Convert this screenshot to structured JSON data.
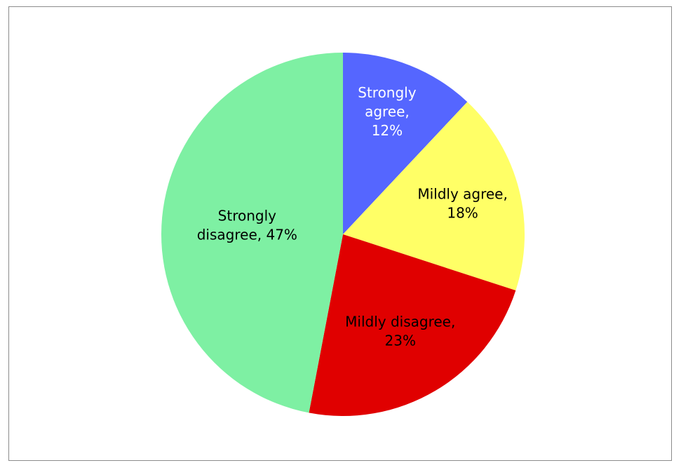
{
  "chart_data": {
    "type": "pie",
    "title": "",
    "slices": [
      {
        "category": "Strongly agree",
        "value": 12,
        "percent_label": "12%",
        "color": "#5566FF",
        "text_color": "#FFFFFF",
        "label_lines": [
          "Strongly",
          "agree,",
          "12%"
        ]
      },
      {
        "category": "Mildly agree",
        "value": 18,
        "percent_label": "18%",
        "color": "#FFFF66",
        "text_color": "#000000",
        "label_lines": [
          "Mildly agree,",
          "18%"
        ]
      },
      {
        "category": "Mildly disagree",
        "value": 23,
        "percent_label": "23%",
        "color": "#E00000",
        "text_color": "#000000",
        "label_lines": [
          "Mildly disagree,",
          "23%"
        ]
      },
      {
        "category": "Strongly disagree",
        "value": 47,
        "percent_label": "47%",
        "color": "#7EF0A3",
        "text_color": "#000000",
        "label_lines": [
          "Strongly",
          "disagree, 47%"
        ]
      }
    ],
    "start_angle_deg": 0,
    "direction": "clockwise",
    "legend": "none",
    "data_labels": "inside"
  }
}
